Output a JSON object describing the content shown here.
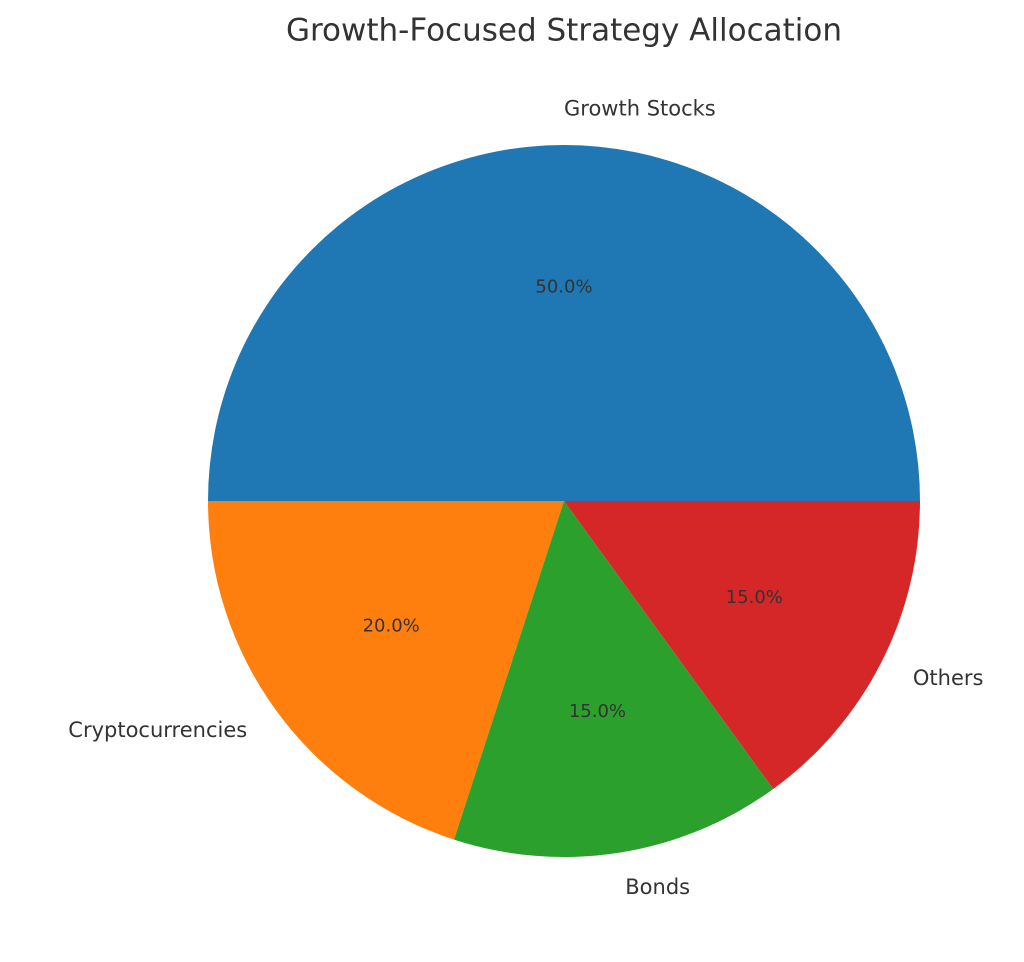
{
  "chart_data": {
    "type": "pie",
    "title": "Growth-Focused Strategy Allocation",
    "categories": [
      "Growth Stocks",
      "Cryptocurrencies",
      "Bonds",
      "Others"
    ],
    "values": [
      50,
      20,
      15,
      15
    ],
    "value_labels": [
      "50.0%",
      "20.0%",
      "15.0%",
      "15.0%"
    ],
    "colors": [
      "#1f77b4",
      "#ff7f0e",
      "#2ca02c",
      "#d62728"
    ]
  }
}
